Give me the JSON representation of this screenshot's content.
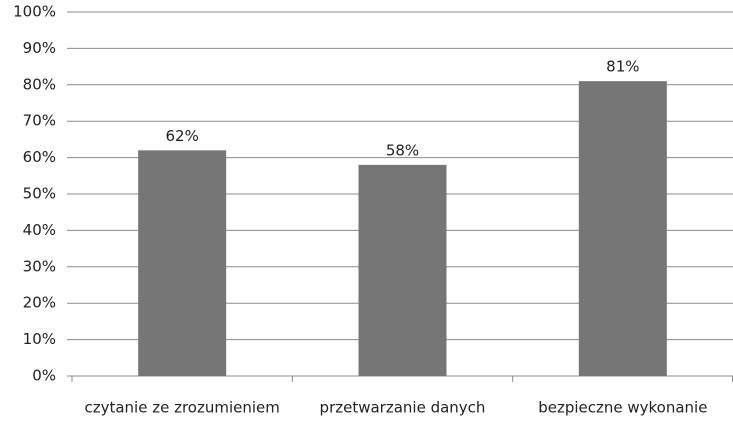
{
  "chart_data": {
    "type": "bar",
    "categories": [
      "czytanie ze zrozumieniem",
      "przetwarzanie danych",
      "bezpieczne wykonanie"
    ],
    "values": [
      62,
      58,
      81
    ],
    "value_labels": [
      "62%",
      "58%",
      "81%"
    ],
    "color": "#767676",
    "ylim": [
      0,
      100
    ],
    "yticks": [
      {
        "value": 0,
        "label": "0%"
      },
      {
        "value": 10,
        "label": "10%"
      },
      {
        "value": 20,
        "label": "20%"
      },
      {
        "value": 30,
        "label": "30%"
      },
      {
        "value": 40,
        "label": "40%"
      },
      {
        "value": 50,
        "label": "50%"
      },
      {
        "value": 60,
        "label": "60%"
      },
      {
        "value": 70,
        "label": "70%"
      },
      {
        "value": 80,
        "label": "80%"
      },
      {
        "value": 90,
        "label": "90%"
      },
      {
        "value": 100,
        "label": "100%"
      }
    ],
    "grid": true
  }
}
